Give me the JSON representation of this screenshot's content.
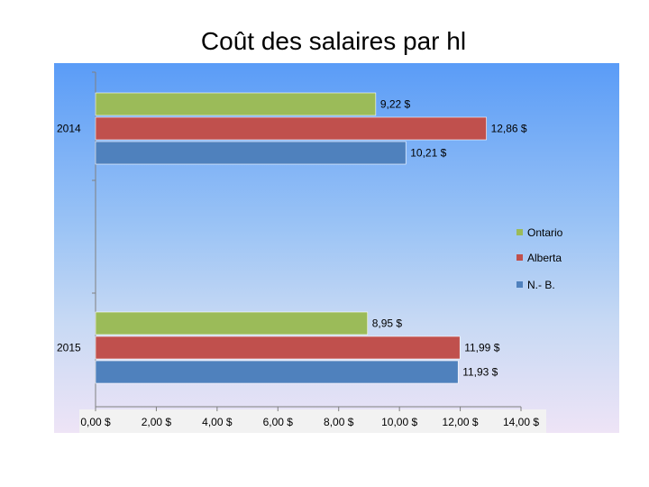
{
  "chart_data": {
    "type": "bar",
    "orientation": "horizontal",
    "title": "Coût des salaires par hl",
    "categories": [
      "2014",
      "2015"
    ],
    "series": [
      {
        "name": "Ontario",
        "color": "#9bbb59",
        "values": [
          9.22,
          8.95
        ],
        "labels": [
          "9,22 $",
          "8,95 $"
        ]
      },
      {
        "name": "Alberta",
        "color": "#c0504d",
        "values": [
          12.86,
          11.99
        ],
        "labels": [
          "12,86 $",
          "11,99 $"
        ]
      },
      {
        "name": "N.- B.",
        "color": "#4f81bd",
        "values": [
          10.21,
          11.93
        ],
        "labels": [
          "10,21 $",
          "11,93 $"
        ]
      }
    ],
    "xlim": [
      0,
      14
    ],
    "xticks": [
      0,
      2,
      4,
      6,
      8,
      10,
      12,
      14
    ],
    "xtick_labels": [
      "0,00 $",
      "2,00 $",
      "4,00 $",
      "6,00 $",
      "8,00 $",
      "10,00 $",
      "12,00 $",
      "14,00 $"
    ],
    "legend_position": "right",
    "grid": false,
    "xlabel": "",
    "ylabel": ""
  }
}
